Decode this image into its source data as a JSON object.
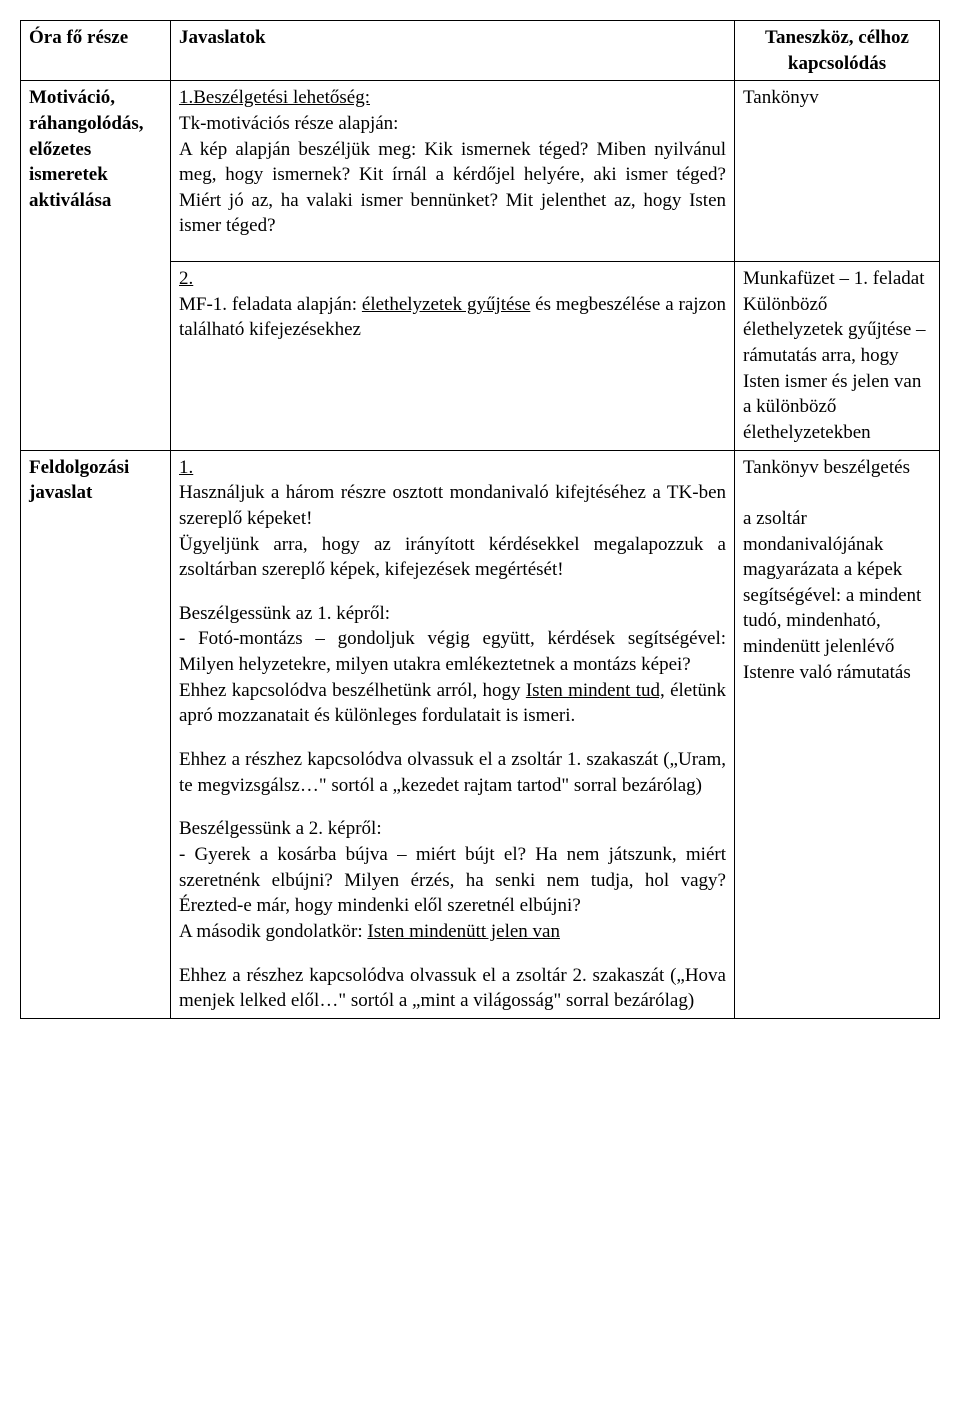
{
  "header": {
    "col1": "Óra fő része",
    "col2": "Javaslatok",
    "col3": "Taneszköz, célhoz kapcsolódás"
  },
  "row1": {
    "left": "Motiváció, ráhangolódás, előzetes ismeretek aktiválása",
    "mid_title": "1.Beszélgetési lehetőség:",
    "mid_body": "Tk-motivációs része alapján:\nA kép alapján beszéljük meg: Kik ismernek téged? Miben nyilvánul meg, hogy ismernek? Kit írnál a kérdőjel helyére, aki ismer téged? Miért jó az, ha valaki ismer bennünket? Mit jelenthet az, hogy Isten ismer téged?",
    "right": "Tankönyv"
  },
  "row2": {
    "mid_num": "2.",
    "mid_a": "MF-1. feladata alapján: ",
    "mid_u": "élethelyzetek gyűjtése",
    "mid_b": " és megbeszélése a rajzon található kifejezésekhez",
    "right": "Munkafüzet – 1. feladat\nKülönböző élethelyzetek gyűjtése – rámutatás arra, hogy Isten ismer és jelen van a különböző élethelyzetekben"
  },
  "row3": {
    "left": "Feldolgozási javaslat",
    "mid_num": "1.",
    "p1": "Használjuk a három részre osztott mondanivaló kifejtéséhez a TK-ben szereplő képeket!",
    "p2": "Ügyeljünk arra, hogy az irányított kérdésekkel megalapozzuk a zsoltárban szereplő képek, kifejezések megértését!",
    "p3_title": "Beszélgessünk az 1. képről:",
    "p3_body": "- Fotó-montázs – gondoljuk végig együtt, kérdések segítségével: Milyen helyzetekre, milyen utakra emlékeztetnek a montázs képei?",
    "p3b_a": "Ehhez kapcsolódva beszélhetünk arról, hogy ",
    "p3b_u": "Isten mindent tud,",
    "p3b_b": " életünk apró mozzanatait és különleges fordulatait is ismeri.",
    "p4": "Ehhez a részhez kapcsolódva olvassuk el a zsoltár 1. szakaszát („Uram, te megvizsgálsz…\" sortól a „kezedet rajtam tartod\" sorral bezárólag)",
    "p5_title": "Beszélgessünk a 2. képről:",
    "p5_body": "- Gyerek a kosárba bújva – miért bújt el? Ha nem játszunk, miért szeretnénk elbújni? Milyen érzés, ha senki nem tudja, hol vagy? Érezted-e már, hogy mindenki elől szeretnél elbújni?",
    "p5b_a": "A második gondolatkör: ",
    "p5b_u": "Isten mindenütt jelen van",
    "p6": "Ehhez a részhez kapcsolódva olvassuk el a zsoltár 2. szakaszát („Hova menjek lelked elől…\" sortól a „mint a világosság\" sorral bezárólag)",
    "right": "Tankönyv beszélgetés\n\na zsoltár mondanivalójának magyarázata a képek segítségével: a mindent tudó, mindenható, mindenütt jelenlévő Istenre való rámutatás"
  }
}
